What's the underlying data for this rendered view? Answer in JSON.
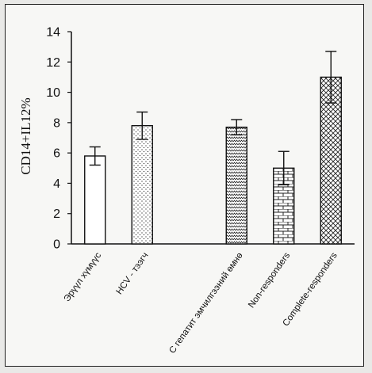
{
  "chart_data": {
    "type": "bar",
    "ylabel": "CD14+IL12%",
    "xlabel": "",
    "title": "",
    "ylim": [
      0,
      14
    ],
    "yticks": [
      0,
      2,
      4,
      6,
      8,
      10,
      12,
      14
    ],
    "grid": false,
    "legend": "none",
    "categories": [
      "Эрүүл хүмүүс",
      "HCV - тээгч",
      "",
      "С гепатит эмчилгээний өмнө",
      "Non-responders",
      "Complete-responders"
    ],
    "values": [
      5.8,
      7.8,
      null,
      7.7,
      5.0,
      11.0
    ],
    "errors": [
      0.6,
      0.9,
      null,
      0.5,
      1.1,
      1.7
    ],
    "patterns": [
      "none",
      "dots",
      "none",
      "zigzag",
      "brick",
      "crosshatch"
    ],
    "colors": {
      "ink": "#111111",
      "fill": "#ffffff",
      "frame": "#222222"
    }
  }
}
